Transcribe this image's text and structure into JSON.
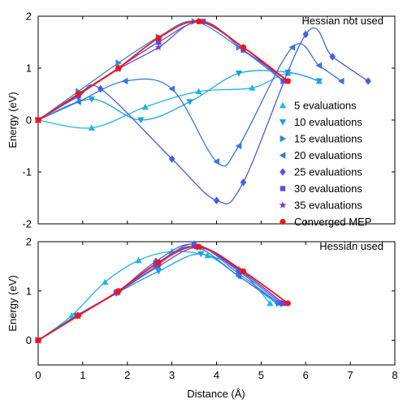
{
  "chart_data": [
    {
      "type": "line",
      "title": "Hessian not used",
      "xlabel": "",
      "ylabel": "Energy (eV)",
      "xlim": [
        0,
        8
      ],
      "ylim": [
        -2,
        2
      ],
      "xticks": [
        0,
        1,
        2,
        3,
        4,
        5,
        6,
        7,
        8
      ],
      "xtick_labels": [
        "",
        "",
        "",
        "",
        "",
        "",
        "",
        "",
        ""
      ],
      "yticks": [
        -2,
        -1,
        0,
        1,
        2
      ],
      "ytick_labels": [
        "-2",
        "-1",
        "0",
        "1",
        "2"
      ],
      "grid": false,
      "legend_position": "right",
      "series": [
        {
          "name": "5 evaluations",
          "marker": "triangle-up",
          "color": "#22b5e8",
          "x": [
            0,
            1.2,
            2.4,
            3.6,
            4.8,
            5.6,
            6.3
          ],
          "y": [
            0,
            -0.15,
            0.25,
            0.55,
            0.62,
            0.9,
            0.75
          ],
          "points": [
            [
              0,
              0
            ],
            [
              1.2,
              -0.15
            ],
            [
              2.4,
              0.25
            ],
            [
              3.6,
              0.55
            ],
            [
              4.8,
              0.62
            ],
            [
              5.6,
              0.9
            ],
            [
              6.3,
              0.75
            ]
          ]
        },
        {
          "name": "10 evaluations",
          "marker": "triangle-down",
          "color": "#1aa3e0",
          "points": [
            [
              0,
              0
            ],
            [
              1.2,
              0.4
            ],
            [
              2.3,
              0.0
            ],
            [
              3.4,
              0.35
            ],
            [
              4.5,
              0.9
            ],
            [
              5.6,
              0.92
            ],
            [
              6.3,
              0.75
            ]
          ]
        },
        {
          "name": "15 evaluations",
          "marker": "triangle-right",
          "color": "#2f86e2",
          "points": [
            [
              0,
              0
            ],
            [
              0.9,
              0.55
            ],
            [
              1.8,
              1.1
            ],
            [
              2.7,
              1.6
            ],
            [
              3.5,
              1.9
            ],
            [
              4.5,
              1.4
            ],
            [
              5.5,
              0.75
            ]
          ]
        },
        {
          "name": "20 evaluations",
          "marker": "triangle-left",
          "color": "#3a73e0",
          "points": [
            [
              0,
              0
            ],
            [
              0.9,
              0.35
            ],
            [
              1.95,
              0.75
            ],
            [
              3.0,
              0.6
            ],
            [
              4.0,
              -0.8
            ],
            [
              4.5,
              -0.5
            ],
            [
              5.7,
              1.4
            ],
            [
              6.3,
              1.05
            ],
            [
              6.8,
              0.75
            ]
          ]
        },
        {
          "name": "25 evaluations",
          "marker": "diamond",
          "color": "#4a5ee0",
          "points": [
            [
              0,
              0
            ],
            [
              0.9,
              0.45
            ],
            [
              1.4,
              0.6
            ],
            [
              3.0,
              -0.75
            ],
            [
              4.0,
              -1.55
            ],
            [
              4.6,
              -1.2
            ],
            [
              6.0,
              1.65
            ],
            [
              6.6,
              1.22
            ],
            [
              7.4,
              0.75
            ]
          ]
        },
        {
          "name": "30 evaluations",
          "marker": "square",
          "color": "#5a4fd8",
          "points": [
            [
              0,
              0
            ],
            [
              0.9,
              0.48
            ],
            [
              1.8,
              1.0
            ],
            [
              2.7,
              1.5
            ],
            [
              3.7,
              1.9
            ],
            [
              4.6,
              1.35
            ],
            [
              5.6,
              0.75
            ]
          ]
        },
        {
          "name": "35 evaluations",
          "marker": "star",
          "color": "#6a45cf",
          "points": [
            [
              0,
              0
            ],
            [
              0.9,
              0.48
            ],
            [
              1.8,
              0.98
            ],
            [
              2.7,
              1.4
            ],
            [
              3.6,
              1.9
            ],
            [
              4.6,
              1.4
            ],
            [
              5.5,
              0.75
            ]
          ]
        },
        {
          "name": "Converged MEP",
          "marker": "circle",
          "color": "#ff1111",
          "points": [
            [
              0,
              0
            ],
            [
              0.9,
              0.5
            ],
            [
              1.8,
              1.0
            ],
            [
              2.7,
              1.58
            ],
            [
              3.6,
              1.9
            ],
            [
              4.6,
              1.4
            ],
            [
              5.6,
              0.75
            ]
          ]
        }
      ]
    },
    {
      "type": "line",
      "title": "Hessian used",
      "xlabel": "Distance (Å)",
      "ylabel": "Energy (eV)",
      "xlim": [
        0,
        8
      ],
      "ylim": [
        -0.5,
        2
      ],
      "xticks": [
        0,
        1,
        2,
        3,
        4,
        5,
        6,
        7,
        8
      ],
      "xtick_labels": [
        "0",
        "1",
        "2",
        "3",
        "4",
        "5",
        "6",
        "7",
        "8"
      ],
      "yticks": [
        0,
        1,
        2
      ],
      "ytick_labels": [
        "0",
        "1",
        "2"
      ],
      "grid": false,
      "series": [
        {
          "name": "5 evaluations",
          "marker": "triangle-up",
          "color": "#22b5e8",
          "points": [
            [
              0,
              0
            ],
            [
              0.75,
              0.5
            ],
            [
              1.5,
              1.18
            ],
            [
              2.25,
              1.62
            ],
            [
              3.0,
              1.8
            ],
            [
              3.8,
              1.72
            ],
            [
              4.5,
              1.45
            ],
            [
              5.2,
              0.75
            ]
          ]
        },
        {
          "name": "10 evaluations",
          "marker": "triangle-down",
          "color": "#1aa3e0",
          "points": [
            [
              0,
              0
            ],
            [
              0.85,
              0.5
            ],
            [
              1.75,
              0.95
            ],
            [
              2.7,
              1.4
            ],
            [
              3.65,
              1.75
            ],
            [
              4.5,
              1.3
            ],
            [
              5.35,
              0.75
            ]
          ]
        },
        {
          "name": "15 evaluations",
          "marker": "triangle-right",
          "color": "#2f86e2",
          "points": [
            [
              0,
              0
            ],
            [
              0.88,
              0.5
            ],
            [
              1.76,
              0.97
            ],
            [
              2.64,
              1.5
            ],
            [
              3.5,
              1.95
            ],
            [
              4.5,
              1.35
            ],
            [
              5.4,
              0.75
            ]
          ]
        },
        {
          "name": "20 evaluations",
          "marker": "triangle-left",
          "color": "#3a73e0",
          "points": [
            [
              0,
              0
            ],
            [
              0.88,
              0.5
            ],
            [
              1.76,
              0.97
            ],
            [
              2.64,
              1.55
            ],
            [
              3.5,
              1.9
            ],
            [
              4.5,
              1.3
            ],
            [
              5.4,
              0.75
            ]
          ]
        },
        {
          "name": "25 evaluations",
          "marker": "diamond",
          "color": "#4a5ee0",
          "points": [
            [
              0,
              0
            ],
            [
              0.88,
              0.5
            ],
            [
              1.76,
              0.97
            ],
            [
              2.64,
              1.6
            ],
            [
              3.5,
              1.95
            ],
            [
              4.5,
              1.4
            ],
            [
              5.45,
              0.75
            ]
          ]
        },
        {
          "name": "30 evaluations",
          "marker": "square",
          "color": "#5a4fd8",
          "points": [
            [
              0,
              0
            ],
            [
              0.88,
              0.5
            ],
            [
              1.78,
              0.98
            ],
            [
              2.66,
              1.55
            ],
            [
              3.55,
              1.9
            ],
            [
              4.55,
              1.4
            ],
            [
              5.5,
              0.75
            ]
          ]
        },
        {
          "name": "35 evaluations",
          "marker": "star",
          "color": "#6a45cf",
          "points": [
            [
              0,
              0
            ],
            [
              0.9,
              0.5
            ],
            [
              1.8,
              0.98
            ],
            [
              2.7,
              1.5
            ],
            [
              3.6,
              1.88
            ],
            [
              4.55,
              1.4
            ],
            [
              5.5,
              0.75
            ]
          ]
        },
        {
          "name": "Converged MEP",
          "marker": "circle",
          "color": "#ff1111",
          "points": [
            [
              0,
              0
            ],
            [
              0.9,
              0.5
            ],
            [
              1.8,
              1.0
            ],
            [
              2.7,
              1.58
            ],
            [
              3.6,
              1.9
            ],
            [
              4.6,
              1.4
            ],
            [
              5.6,
              0.75
            ]
          ]
        }
      ]
    }
  ]
}
